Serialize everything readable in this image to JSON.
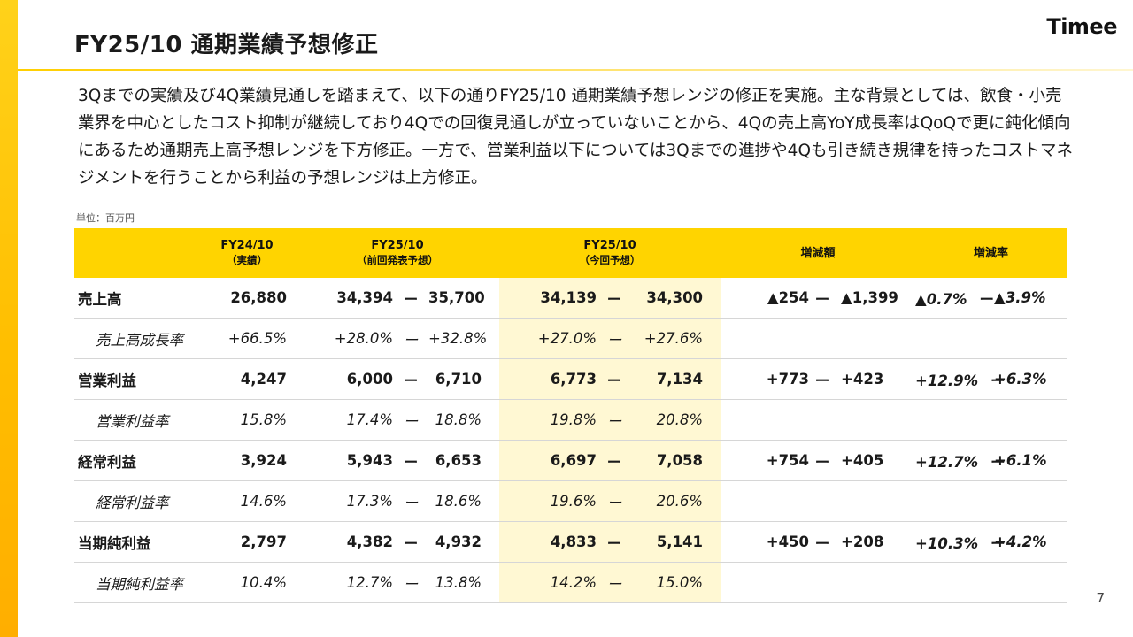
{
  "header": {
    "title": "FY25/10 通期業績予想修正",
    "logo": "Timee"
  },
  "summary": "3Qまでの実績及び4Q業績見通しを踏まえて、以下の通りFY25/10 通期業績予想レンジの修正を実施。主な背景としては、飲食・小売業界を中心としたコスト抑制が継続しており4Qでの回復見通しが立っていないことから、4Qの売上高YoY成長率はQoQで更に鈍化傾向にあるため通期売上高予想レンジを下方修正。一方で、営業利益以下については3Qまでの進捗や4Qも引き続き規律を持ったコストマネジメントを行うことから利益の予想レンジは上方修正。",
  "unit_label": "単位：百万円",
  "table": {
    "headers": {
      "fy24": "FY24/10",
      "fy24_sub": "（実績）",
      "prev": "FY25/10",
      "prev_sub": "（前回発表予想）",
      "curr": "FY25/10",
      "curr_sub": "（今回予想）",
      "diff": "増減額",
      "rate": "増減率"
    },
    "dash": "ー",
    "rows": [
      {
        "label": "売上高",
        "fy24": "26,880",
        "prev_lo": "34,394",
        "prev_hi": "35,700",
        "curr_lo": "34,139",
        "curr_hi": "34,300",
        "diff_lo": "▲254",
        "diff_hi": "▲1,399",
        "rate_lo": "▲0.7%",
        "rate_hi": "▲3.9%"
      },
      {
        "label": "売上高成長率",
        "fy24": "+66.5%",
        "prev_lo": "+28.0%",
        "prev_hi": "+32.8%",
        "curr_lo": "+27.0%",
        "curr_hi": "+27.6%"
      },
      {
        "label": "営業利益",
        "fy24": "4,247",
        "prev_lo": "6,000",
        "prev_hi": "6,710",
        "curr_lo": "6,773",
        "curr_hi": "7,134",
        "diff_lo": "+773",
        "diff_hi": "+423",
        "rate_lo": "+12.9%",
        "rate_hi": "+6.3%"
      },
      {
        "label": "営業利益率",
        "fy24": "15.8%",
        "prev_lo": "17.4%",
        "prev_hi": "18.8%",
        "curr_lo": "19.8%",
        "curr_hi": "20.8%"
      },
      {
        "label": "経常利益",
        "fy24": "3,924",
        "prev_lo": "5,943",
        "prev_hi": "6,653",
        "curr_lo": "6,697",
        "curr_hi": "7,058",
        "diff_lo": "+754",
        "diff_hi": "+405",
        "rate_lo": "+12.7%",
        "rate_hi": "+6.1%"
      },
      {
        "label": "経常利益率",
        "fy24": "14.6%",
        "prev_lo": "17.3%",
        "prev_hi": "18.6%",
        "curr_lo": "19.6%",
        "curr_hi": "20.6%"
      },
      {
        "label": "当期純利益",
        "fy24": "2,797",
        "prev_lo": "4,382",
        "prev_hi": "4,932",
        "curr_lo": "4,833",
        "curr_hi": "5,141",
        "diff_lo": "+450",
        "diff_hi": "+208",
        "rate_lo": "+10.3%",
        "rate_hi": "+4.2%"
      },
      {
        "label": "当期純利益率",
        "fy24": "10.4%",
        "prev_lo": "12.7%",
        "prev_hi": "13.8%",
        "curr_lo": "14.2%",
        "curr_hi": "15.0%"
      }
    ]
  },
  "page_number": "7",
  "colors": {
    "accent": "#ffd400",
    "highlight": "#fff8d3"
  }
}
